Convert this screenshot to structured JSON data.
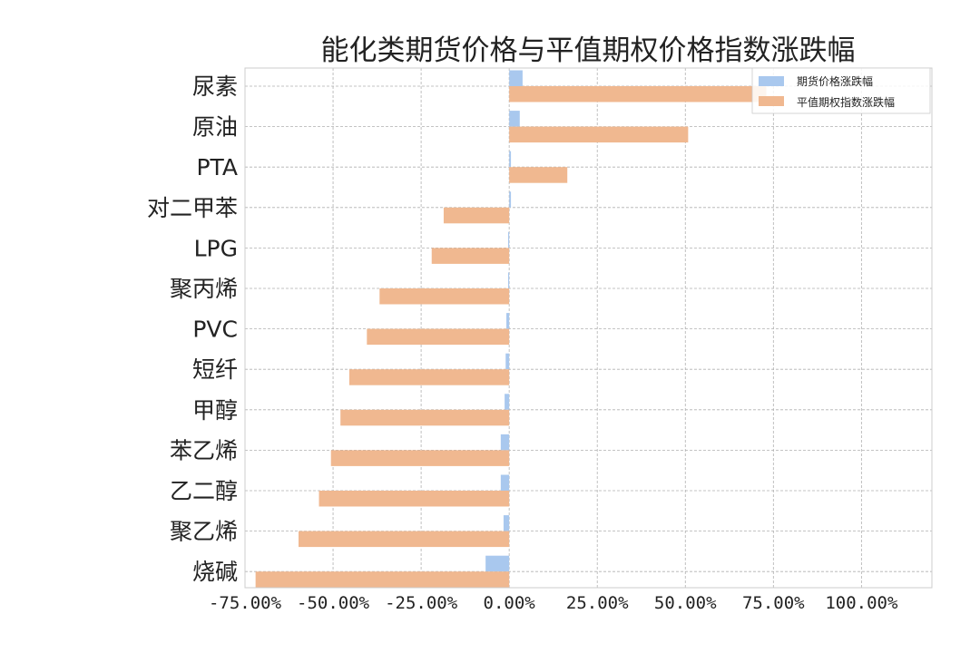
{
  "chart_data": {
    "type": "bar",
    "orientation": "horizontal",
    "title": "能化类期货价格与平值期权价格指数涨跌幅",
    "categories": [
      "尿素",
      "原油",
      "PTA",
      "对二甲苯",
      "LPG",
      "聚丙烯",
      "PVC",
      "短纤",
      "甲醇",
      "苯乙烯",
      "乙二醇",
      "聚乙烯",
      "烧碱"
    ],
    "series": [
      {
        "name": "期货价格涨跌幅",
        "color": "#a9c8ee",
        "values": [
          3.8,
          3.0,
          0.5,
          0.5,
          -0.3,
          -0.3,
          -0.8,
          -1.0,
          -1.3,
          -2.4,
          -2.4,
          -1.6,
          -6.7
        ]
      },
      {
        "name": "平值期权指数涨跌幅",
        "color": "#f0b890",
        "values": [
          73.0,
          50.8,
          16.5,
          -18.6,
          -22.0,
          -36.8,
          -40.4,
          -45.4,
          -47.9,
          -50.6,
          -54.0,
          -59.8,
          -72.0
        ]
      }
    ],
    "xlim": [
      -75,
      120
    ],
    "xticks": [
      -75,
      -50,
      -25,
      0,
      25,
      50,
      75,
      100
    ],
    "xtick_labels": [
      "-75.00%",
      "-50.00%",
      "-25.00%",
      "0.00%",
      "25.00%",
      "50.00%",
      "75.00%",
      "100.00%"
    ],
    "grid": true,
    "legend_position": "top-right"
  }
}
